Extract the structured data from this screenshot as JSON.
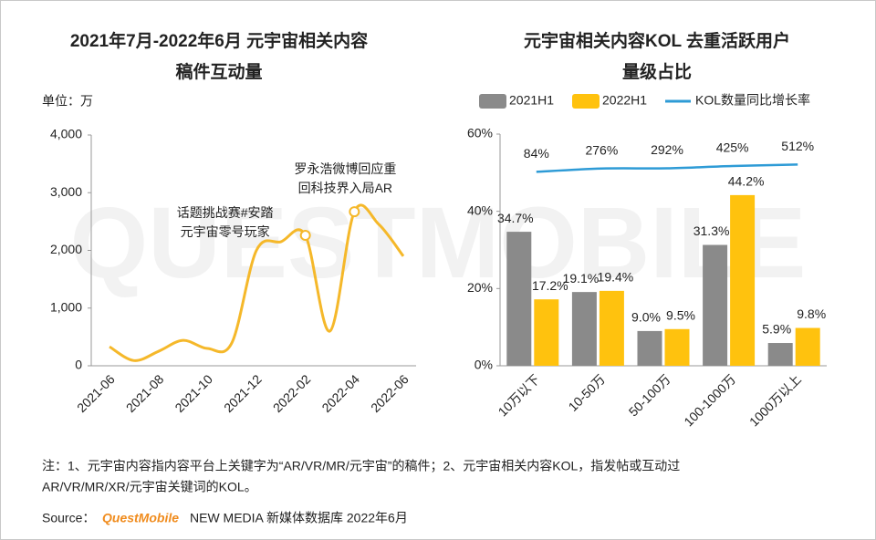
{
  "chart_data": [
    {
      "type": "line",
      "title": [
        "2021年7月-2022年6月 元宇宙相关内容",
        "稿件互动量"
      ],
      "unit": "单位：万",
      "categories": [
        "2021-06",
        null,
        "2021-08",
        null,
        "2021-10",
        null,
        "2021-12",
        null,
        "2022-02",
        null,
        "2022-04",
        null,
        "2022-06"
      ],
      "values": [
        330,
        90,
        250,
        440,
        300,
        400,
        2000,
        2150,
        2260,
        600,
        2670,
        2450,
        1900
      ],
      "color": "#f5b82a",
      "ylim": [
        0,
        4000
      ],
      "yticks": [
        0,
        {
          "value": 1000,
          "label": "1,000"
        },
        {
          "value": 2000,
          "label": "2,000"
        },
        {
          "value": 3000,
          "label": "3,000"
        },
        {
          "value": 4000,
          "label": "4,000"
        }
      ],
      "grid": false,
      "annotations": [
        {
          "text": [
            "话题挑战赛#安踏",
            "元宇宙零号玩家"
          ]
        },
        {
          "text": [
            "罗永浩微博回应重",
            "回科技界入局AR"
          ]
        }
      ]
    },
    {
      "type": "bar",
      "title": [
        "元宇宙相关内容KOL 去重活跃用户",
        "量级占比"
      ],
      "categories": [
        "10万以下",
        "10-50万",
        "50-100万",
        "100-1000万",
        "1000万以上"
      ],
      "series": [
        {
          "name": "2021H1",
          "color": "#8a8a8a",
          "values": [
            34.7,
            19.1,
            9.0,
            31.3,
            5.9
          ],
          "value_labels": [
            "34.7%",
            "19.1%",
            "9.0%",
            "31.3%",
            "5.9%"
          ]
        },
        {
          "name": "2022H1",
          "color": "#ffc20e",
          "values": [
            17.2,
            19.4,
            9.5,
            44.2,
            9.8
          ],
          "value_labels": [
            "17.2%",
            "19.4%",
            "9.5%",
            "44.2%",
            "9.8%"
          ]
        },
        {
          "name": "KOL数量同比增长率",
          "color": "#2e9bd6",
          "type": "line",
          "axis": "y2",
          "values": [
            84,
            276,
            292,
            425,
            512
          ],
          "value_labels": [
            "84%",
            "276%",
            "292%",
            "425%",
            "512%"
          ]
        }
      ],
      "ylim": [
        0,
        60
      ],
      "yticks": [
        {
          "value": 0,
          "label": "0%"
        },
        {
          "value": 20,
          "label": "20%"
        },
        {
          "value": 40,
          "label": "40%"
        },
        {
          "value": 60,
          "label": "60%"
        }
      ],
      "y2lim": [
        -11300,
        2300
      ],
      "grid": false,
      "legend": "top"
    }
  ],
  "note": [
    "注：1、元宇宙内容指内容平台上关键字为“AR/VR/MR/元宇宙”的稿件；2、元宇宙相关内容KOL，指发帖或互动过",
    "AR/VR/MR/XR/元宇宙关键词的KOL。"
  ],
  "source": {
    "label": "Source：",
    "brand": "QuestMobile",
    "text": "NEW MEDIA 新媒体数据库 2022年6月"
  },
  "watermark": "QUESTMOBILE"
}
